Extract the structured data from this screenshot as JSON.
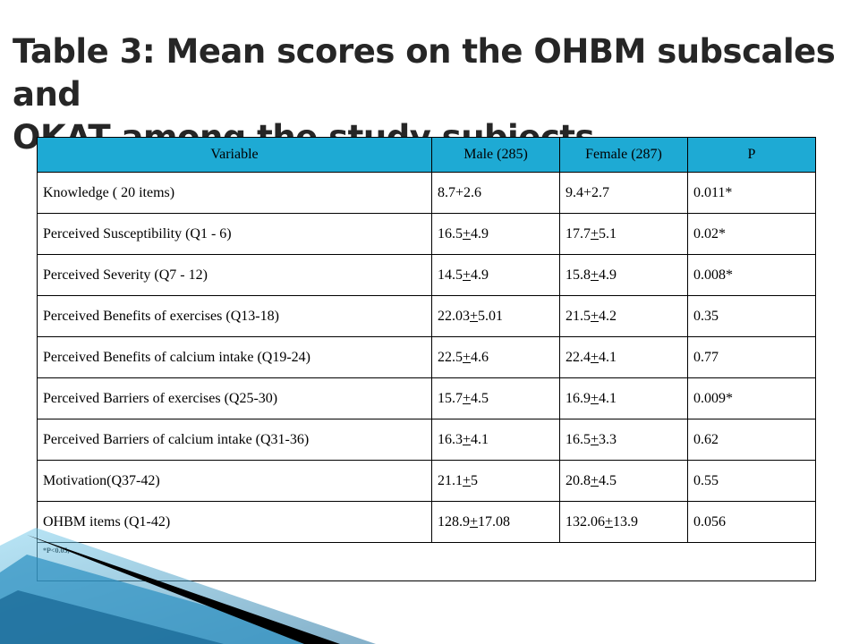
{
  "title": {
    "line1": "Table 3:  Mean scores on the OHBM subscales and",
    "line2": "OKAT among the study subjects"
  },
  "table": {
    "headers": [
      "Variable",
      "Male  (285)",
      "Female  (287)",
      "P"
    ],
    "rows": [
      {
        "variable": "Knowledge ( 20 items)",
        "male": [
          "8.7",
          "+",
          "2.6"
        ],
        "male_underline": false,
        "female": [
          "9.4",
          "+",
          "2.7"
        ],
        "female_underline": false,
        "p": "0.011*"
      },
      {
        "variable": "Perceived Susceptibility (Q1 - 6)",
        "male": [
          "16.5",
          "+",
          "4.9"
        ],
        "male_underline": true,
        "female": [
          "17.7",
          "+",
          "5.1"
        ],
        "female_underline": true,
        "p": "0.02*"
      },
      {
        "variable": "Perceived Severity (Q7 - 12)",
        "male": [
          "14.5",
          "+",
          "4.9"
        ],
        "male_underline": true,
        "female": [
          "15.8",
          "+",
          "4.9"
        ],
        "female_underline": true,
        "p": "0.008*"
      },
      {
        "variable": "Perceived Benefits of exercises  (Q13-18)",
        "male": [
          "22.03",
          "+",
          "5.01"
        ],
        "male_underline": true,
        "female": [
          "21.5",
          "+",
          "4.2"
        ],
        "female_underline": true,
        "p": "0.35"
      },
      {
        "variable": "Perceived Benefits of calcium  intake (Q19-24)",
        "male": [
          "22.5",
          "+",
          "4.6"
        ],
        "male_underline": true,
        "female": [
          "22.4",
          "+",
          "4.1"
        ],
        "female_underline": true,
        "p": "0.77"
      },
      {
        "variable": "Perceived Barriers of exercises  (Q25-30)",
        "male": [
          "15.7",
          "+",
          "4.5"
        ],
        "male_underline": true,
        "female": [
          "16.9",
          "+",
          "4.1"
        ],
        "female_underline": true,
        "p": "0.009*"
      },
      {
        "variable": "Perceived Barriers of calcium intake (Q31-36)",
        "male": [
          "16.3",
          "+",
          "4.1"
        ],
        "male_underline": true,
        "female": [
          "16.5",
          "+",
          "3.3"
        ],
        "female_underline": true,
        "p": "0.62"
      },
      {
        "variable": "Motivation(Q37-42)",
        "male": [
          "21.1",
          "+",
          "5"
        ],
        "male_underline": true,
        "female": [
          "20.8",
          "+",
          "4.5"
        ],
        "female_underline": true,
        "p": "0.55"
      },
      {
        "variable": "OHBM items (Q1-42)",
        "male": [
          "128.9",
          "+",
          "17.08"
        ],
        "male_underline": true,
        "female": [
          "132.06",
          "+",
          "13.9"
        ],
        "female_underline": true,
        "p": "0.056"
      }
    ],
    "footnote": "*P<0.05,"
  },
  "colors": {
    "header_bg": "#1eaad4",
    "title_text": "#262626",
    "decoration_dark": "#000000",
    "decoration_blue": "#2a8fc0"
  }
}
